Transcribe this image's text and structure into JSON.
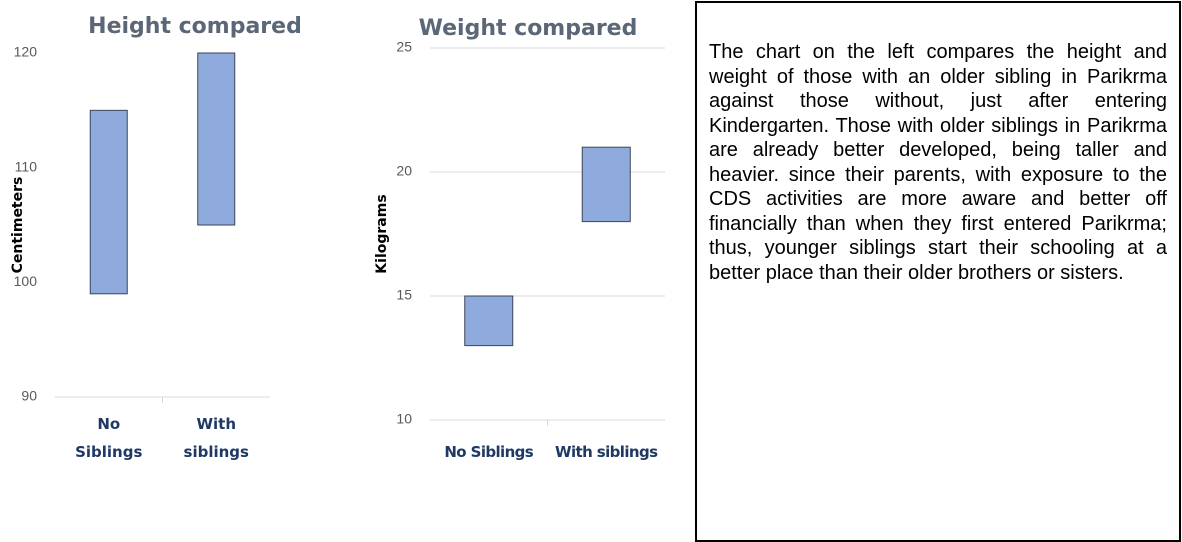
{
  "chart_data": [
    {
      "type": "floating_bar",
      "title": "Height compared",
      "ylabel": "Centimeters",
      "categories": [
        "No Siblings",
        "With siblings"
      ],
      "low": [
        99,
        105
      ],
      "high": [
        115,
        120
      ],
      "color": "#8faadc",
      "ylim": [
        90,
        120
      ],
      "yticks": [
        90,
        100,
        110,
        120
      ],
      "grid": false
    },
    {
      "type": "floating_bar",
      "title": "Weight compared",
      "ylabel": "Kilograms",
      "categories": [
        "No Siblings",
        "With siblings"
      ],
      "low": [
        13,
        18
      ],
      "high": [
        15,
        21
      ],
      "color": "#8faadc",
      "ylim": [
        10,
        25
      ],
      "yticks": [
        10,
        15,
        20,
        25
      ],
      "grid": true
    }
  ],
  "text_box": {
    "text": "The chart on the left compares the height and weight of those with an older sibling in Parikrma against those without, just after entering Kindergarten. Those with older siblings in Parikrma are already better developed, being taller and heavier. since their parents, with exposure to the CDS activities are more aware and better off financially than when they first entered Parikrma; thus, younger siblings start their schooling at a better place  than their older brothers or sisters."
  }
}
